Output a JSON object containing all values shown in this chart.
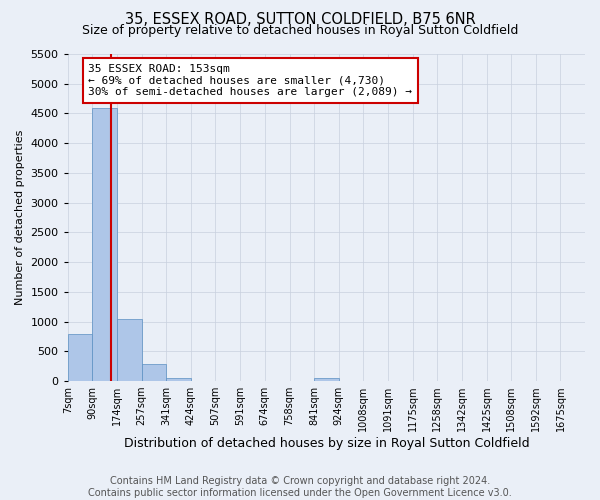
{
  "title": "35, ESSEX ROAD, SUTTON COLDFIELD, B75 6NR",
  "subtitle": "Size of property relative to detached houses in Royal Sutton Coldfield",
  "xlabel": "Distribution of detached houses by size in Royal Sutton Coldfield",
  "ylabel": "Number of detached properties",
  "footer_line1": "Contains HM Land Registry data © Crown copyright and database right 2024.",
  "footer_line2": "Contains public sector information licensed under the Open Government Licence v3.0.",
  "bin_labels": [
    "7sqm",
    "90sqm",
    "174sqm",
    "257sqm",
    "341sqm",
    "424sqm",
    "507sqm",
    "591sqm",
    "674sqm",
    "758sqm",
    "841sqm",
    "924sqm",
    "1008sqm",
    "1091sqm",
    "1175sqm",
    "1258sqm",
    "1342sqm",
    "1425sqm",
    "1508sqm",
    "1592sqm",
    "1675sqm"
  ],
  "bin_edges": [
    7,
    90,
    174,
    257,
    341,
    424,
    507,
    591,
    674,
    758,
    841,
    924,
    1008,
    1091,
    1175,
    1258,
    1342,
    1425,
    1508,
    1592,
    1675
  ],
  "bar_heights": [
    800,
    4600,
    1050,
    280,
    60,
    5,
    0,
    0,
    0,
    0,
    50,
    0,
    0,
    0,
    0,
    0,
    0,
    0,
    0,
    0
  ],
  "bar_color": "#aec6e8",
  "bar_edge_color": "#5a8fc2",
  "vline_color": "#cc0000",
  "vline_x": 153,
  "annotation_line1": "35 ESSEX ROAD: 153sqm",
  "annotation_line2": "← 69% of detached houses are smaller (4,730)",
  "annotation_line3": "30% of semi-detached houses are larger (2,089) →",
  "annotation_box_color": "#ffffff",
  "annotation_box_edge_color": "#cc0000",
  "ylim": [
    0,
    5500
  ],
  "yticks": [
    0,
    500,
    1000,
    1500,
    2000,
    2500,
    3000,
    3500,
    4000,
    4500,
    5000,
    5500
  ],
  "grid_color": "#c8d0de",
  "bg_color": "#eaeff7",
  "title_fontsize": 10.5,
  "subtitle_fontsize": 9,
  "annotation_fontsize": 8,
  "footer_fontsize": 7,
  "ylabel_fontsize": 8,
  "xlabel_fontsize": 9
}
